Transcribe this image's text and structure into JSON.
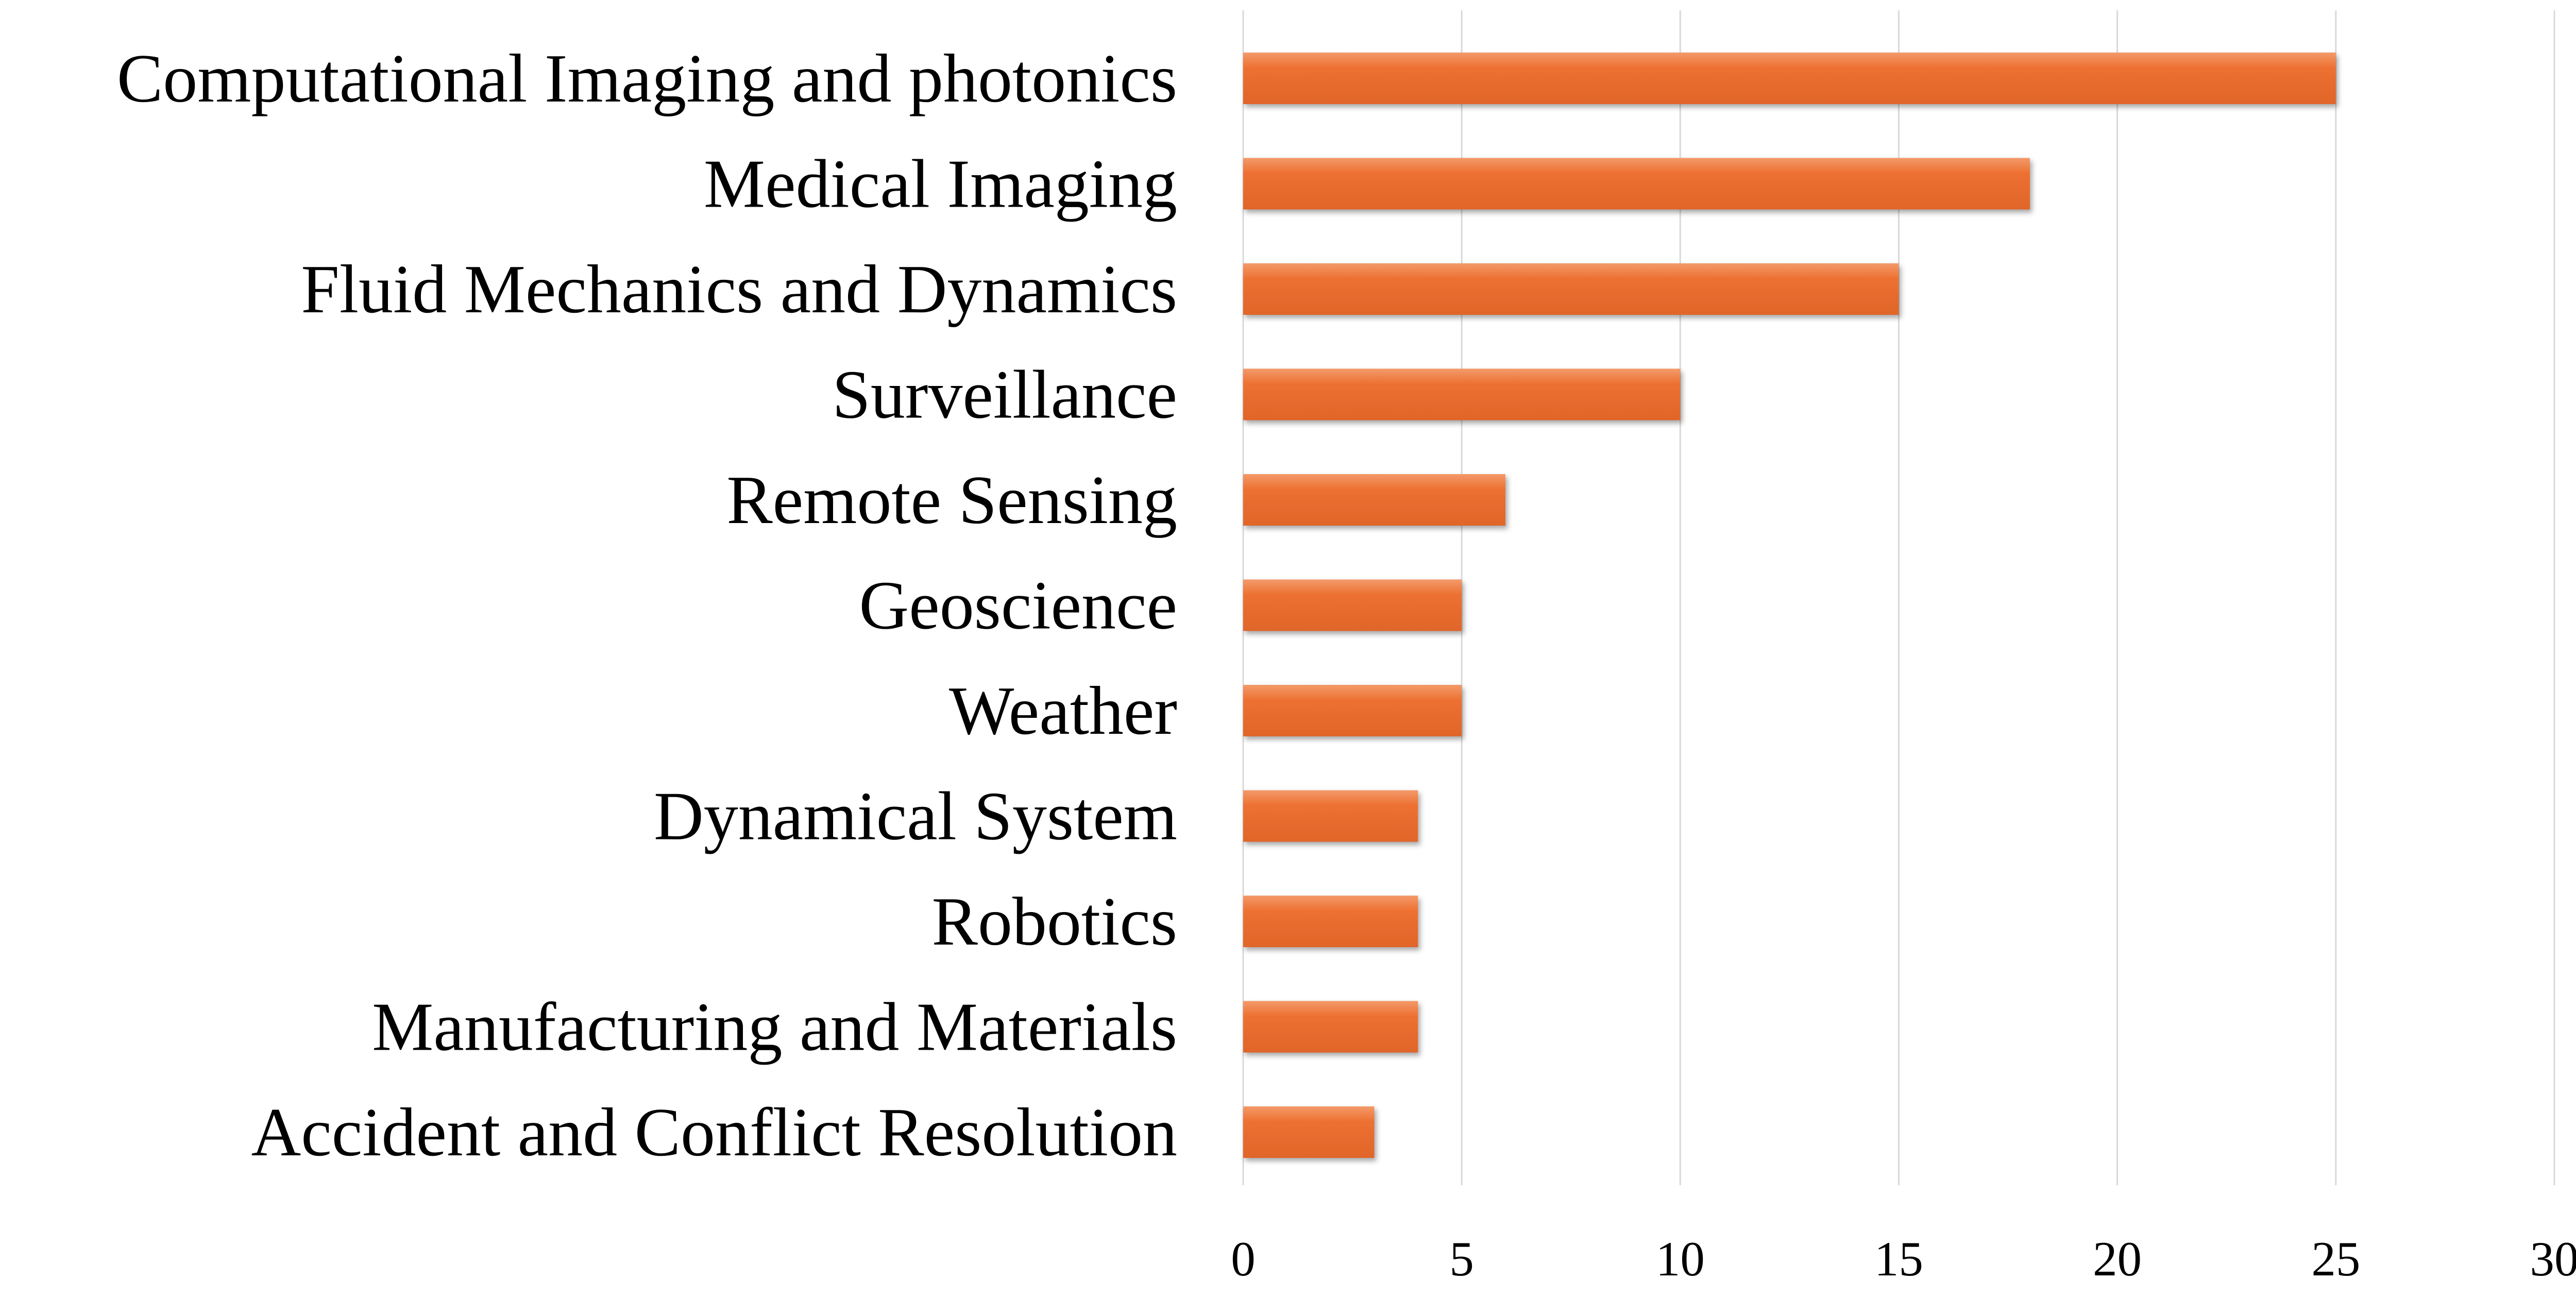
{
  "chart_data": {
    "type": "bar",
    "orientation": "horizontal",
    "categories": [
      "Computational Imaging and photonics",
      "Medical Imaging",
      "Fluid Mechanics and Dynamics",
      "Surveillance",
      "Remote Sensing",
      "Geoscience",
      "Weather",
      "Dynamical System",
      "Robotics",
      "Manufacturing and Materials",
      "Accident and Conflict Resolution"
    ],
    "values": [
      25,
      18,
      15,
      10,
      6,
      5,
      5,
      4,
      4,
      4,
      3
    ],
    "xlim": [
      0,
      30
    ],
    "xticks": [
      "0",
      "5",
      "10",
      "15",
      "20",
      "25",
      "30"
    ],
    "title": "",
    "xlabel": "",
    "ylabel": "",
    "grid": "vertical",
    "legend": "none",
    "colors": {
      "bar": "#ED7031",
      "bar_highlight": "#F39A6A",
      "bar_shadow": "#C95A22",
      "gridline": "#D9D9D9",
      "text": "#000000"
    }
  }
}
